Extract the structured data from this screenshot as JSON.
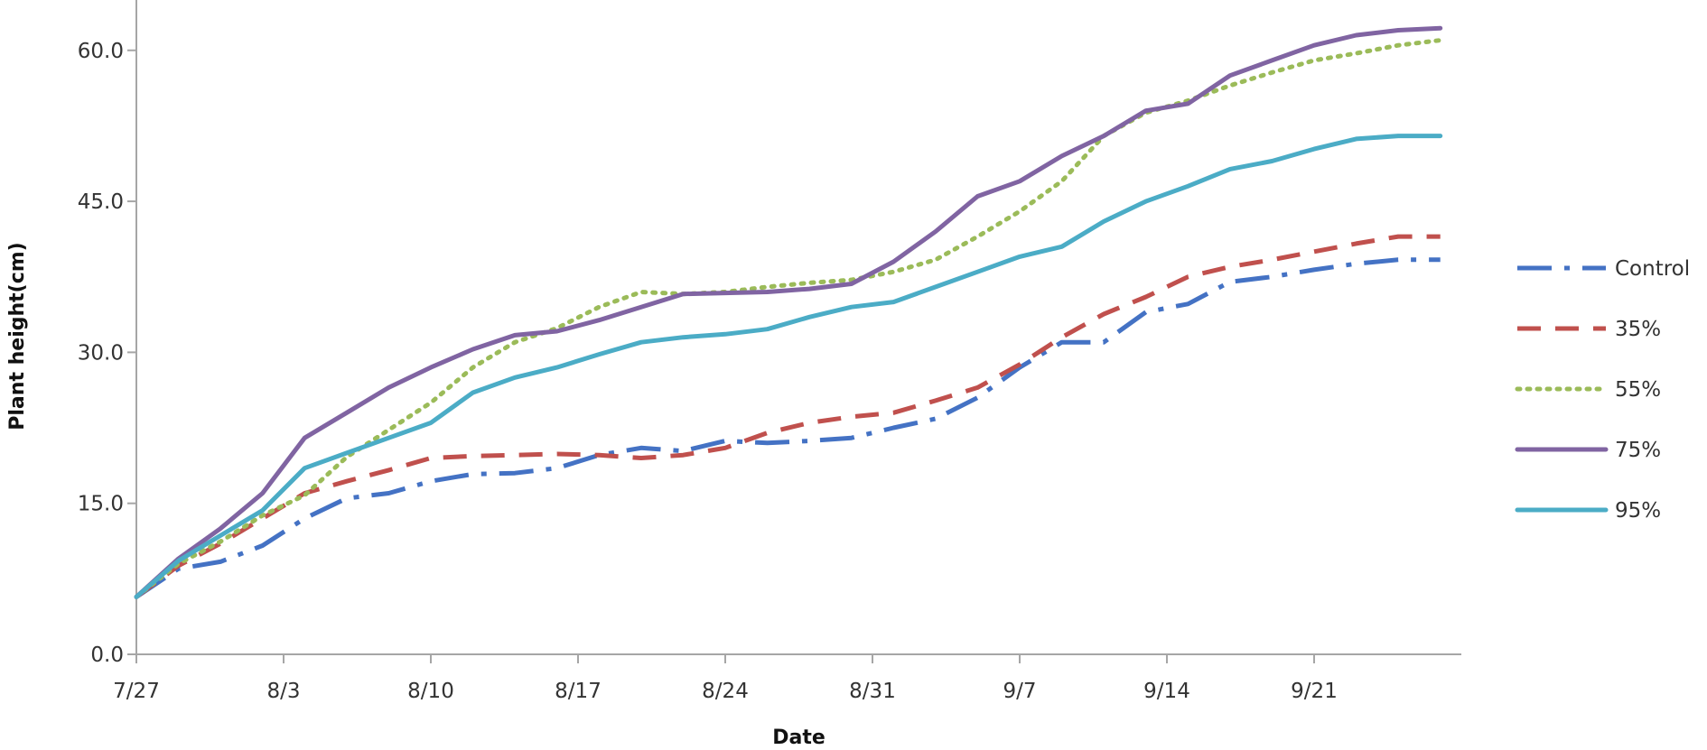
{
  "chart_data": {
    "type": "line",
    "title": "",
    "xlabel": "Date",
    "ylabel": "Plant height(cm)",
    "ylim": [
      0,
      65
    ],
    "yticks": [
      "0.0",
      "15.0",
      "30.0",
      "45.0",
      "60.0"
    ],
    "ytick_values": [
      0,
      15,
      30,
      45,
      60
    ],
    "xticks": [
      "7/27",
      "8/3",
      "8/10",
      "8/17",
      "8/24",
      "8/31",
      "9/7",
      "9/14",
      "9/21"
    ],
    "xtick_dates": [
      "2015-07-27",
      "2015-08-03",
      "2015-08-10",
      "2015-08-17",
      "2015-08-24",
      "2015-08-31",
      "2015-09-07",
      "2015-09-14",
      "2015-09-21"
    ],
    "x_range": [
      "2015-07-27",
      "2015-09-28"
    ],
    "grid": false,
    "legend_position": "right",
    "x": [
      "2015-07-27",
      "2015-07-29",
      "2015-07-31",
      "2015-08-02",
      "2015-08-04",
      "2015-08-06",
      "2015-08-08",
      "2015-08-10",
      "2015-08-12",
      "2015-08-14",
      "2015-08-16",
      "2015-08-18",
      "2015-08-20",
      "2015-08-22",
      "2015-08-24",
      "2015-08-26",
      "2015-08-28",
      "2015-08-30",
      "2015-09-01",
      "2015-09-03",
      "2015-09-05",
      "2015-09-07",
      "2015-09-09",
      "2015-09-11",
      "2015-09-13",
      "2015-09-15",
      "2015-09-17",
      "2015-09-19",
      "2015-09-21",
      "2015-09-23",
      "2015-09-25",
      "2015-09-27"
    ],
    "series": [
      {
        "name": "Control",
        "color": "#4472c4",
        "dash": "dash-dot",
        "values": [
          5.7,
          8.5,
          9.2,
          10.8,
          13.5,
          15.5,
          16.0,
          17.2,
          17.9,
          18.0,
          18.5,
          19.8,
          20.5,
          20.2,
          21.2,
          21.0,
          21.2,
          21.5,
          22.5,
          23.4,
          25.5,
          28.5,
          31.0,
          31.0,
          34.0,
          34.8,
          37.0,
          37.5,
          38.2,
          38.8,
          39.2,
          39.2
        ]
      },
      {
        "name": "35%",
        "color": "#c0504d",
        "dash": "dash",
        "values": [
          5.7,
          8.8,
          11.0,
          13.5,
          16.0,
          17.2,
          18.3,
          19.5,
          19.7,
          19.8,
          19.9,
          19.8,
          19.5,
          19.8,
          20.5,
          22.0,
          23.0,
          23.6,
          24.0,
          25.2,
          26.5,
          28.8,
          31.5,
          33.8,
          35.5,
          37.5,
          38.5,
          39.2,
          40.0,
          40.8,
          41.5,
          41.5
        ]
      },
      {
        "name": "55%",
        "color": "#9bbb59",
        "dash": "dot",
        "values": [
          5.7,
          9.0,
          11.2,
          13.8,
          15.8,
          19.6,
          22.3,
          25.0,
          28.5,
          31.0,
          32.4,
          34.5,
          36.0,
          35.8,
          36.0,
          36.5,
          36.9,
          37.2,
          38.0,
          39.2,
          41.5,
          44.0,
          47.0,
          51.5,
          53.8,
          55.0,
          56.5,
          57.8,
          59.0,
          59.7,
          60.5,
          61.0
        ]
      },
      {
        "name": "75%",
        "color": "#8064a2",
        "dash": "solid",
        "values": [
          5.7,
          9.5,
          12.5,
          16.0,
          21.5,
          24.0,
          26.5,
          28.5,
          30.3,
          31.7,
          32.1,
          33.2,
          34.5,
          35.8,
          35.9,
          36.0,
          36.3,
          36.8,
          39.0,
          42.0,
          45.5,
          47.0,
          49.5,
          51.5,
          54.0,
          54.7,
          57.5,
          59.0,
          60.5,
          61.5,
          62.0,
          62.2
        ]
      },
      {
        "name": "95%",
        "color": "#4bacc6",
        "dash": "solid",
        "values": [
          5.7,
          9.3,
          11.8,
          14.3,
          18.5,
          20.0,
          21.5,
          23.0,
          26.0,
          27.5,
          28.5,
          29.8,
          31.0,
          31.5,
          31.8,
          32.3,
          33.5,
          34.5,
          35.0,
          36.5,
          38.0,
          39.5,
          40.5,
          43.0,
          45.0,
          46.5,
          48.2,
          49.0,
          50.2,
          51.2,
          51.5,
          51.5
        ]
      }
    ]
  }
}
